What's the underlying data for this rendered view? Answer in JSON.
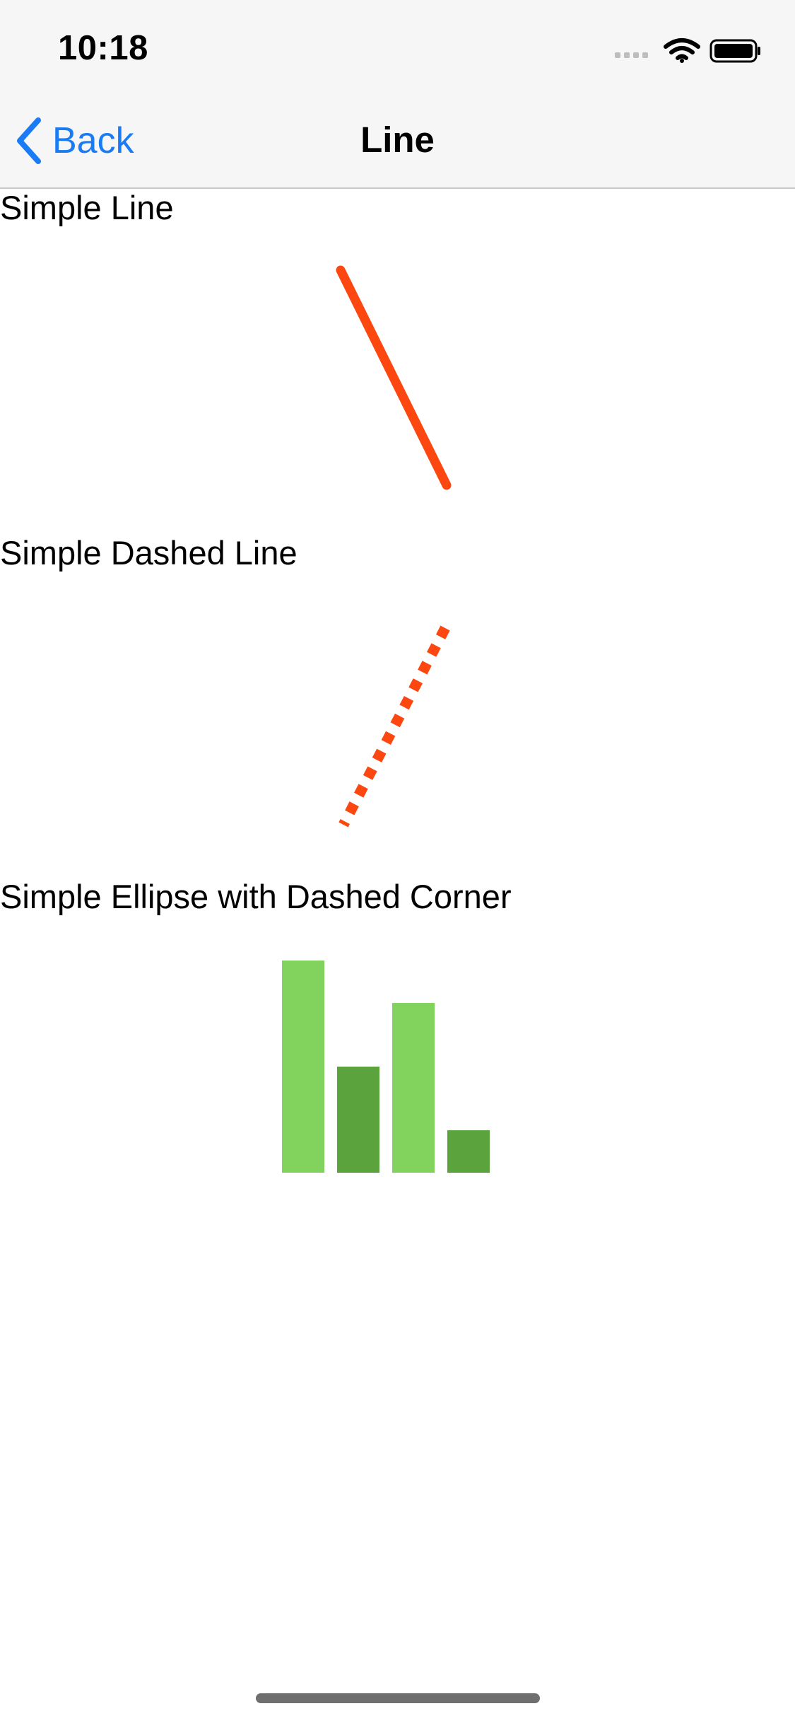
{
  "status_bar": {
    "time": "10:18",
    "icons": [
      "signal-dots-icon",
      "wifi-icon",
      "battery-icon"
    ]
  },
  "nav_bar": {
    "back_label": "Back",
    "title": "Line",
    "tint_color": "#1a7cf5"
  },
  "sections": [
    {
      "title": "Simple Line",
      "line_color": "#fc4810",
      "style": "solid"
    },
    {
      "title": "Simple Dashed Line",
      "line_color": "#fc4810",
      "style": "dashed"
    },
    {
      "title": "Simple Ellipse with Dashed Corner"
    }
  ],
  "chart_data": {
    "type": "bar",
    "values": [
      100,
      50,
      80,
      20
    ],
    "colors": [
      "#82d25e",
      "#5ba33d",
      "#82d25e",
      "#5ba33d"
    ]
  }
}
